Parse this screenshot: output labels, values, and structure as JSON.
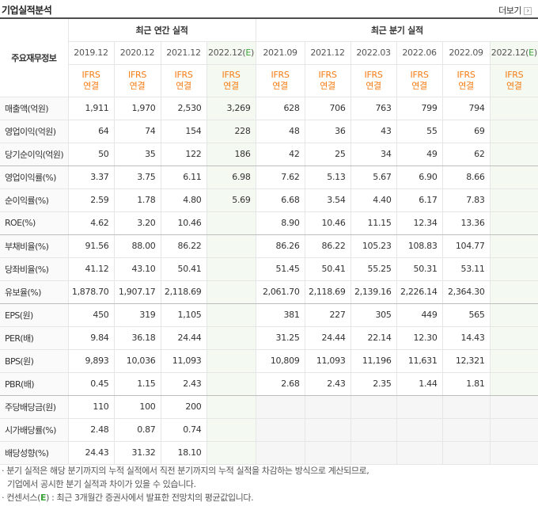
{
  "header": {
    "title": "기업실적분석",
    "more_label": "더보기",
    "more_arrow": "›"
  },
  "table": {
    "corner_label": "주요재무정보",
    "annual_group": "최근 연간 실적",
    "quarter_group": "최근 분기 실적",
    "annual_periods": [
      "2019.12",
      "2020.12",
      "2021.12",
      "2022.12(E)"
    ],
    "quarter_periods": [
      "2021.09",
      "2021.12",
      "2022.03",
      "2022.06",
      "2022.09",
      "2022.12(E)"
    ],
    "standard_line1": "IFRS",
    "standard_line2": "연결",
    "rows": [
      {
        "label": "매출액(억원)",
        "annual": [
          "1,911",
          "1,970",
          "2,530",
          "3,269"
        ],
        "quarter": [
          "628",
          "706",
          "763",
          "799",
          "794",
          ""
        ]
      },
      {
        "label": "영업이익(억원)",
        "annual": [
          "64",
          "74",
          "154",
          "228"
        ],
        "quarter": [
          "48",
          "36",
          "43",
          "55",
          "69",
          ""
        ]
      },
      {
        "label": "당기순이익(억원)",
        "annual": [
          "50",
          "35",
          "122",
          "186"
        ],
        "quarter": [
          "42",
          "25",
          "34",
          "49",
          "62",
          ""
        ]
      },
      {
        "label": "영업이익률(%)",
        "annual": [
          "3.37",
          "3.75",
          "6.11",
          "6.98"
        ],
        "quarter": [
          "7.62",
          "5.13",
          "5.67",
          "6.90",
          "8.66",
          ""
        ]
      },
      {
        "label": "순이익률(%)",
        "annual": [
          "2.59",
          "1.78",
          "4.80",
          "5.69"
        ],
        "quarter": [
          "6.68",
          "3.54",
          "4.40",
          "6.17",
          "7.83",
          ""
        ]
      },
      {
        "label": "ROE(%)",
        "annual": [
          "4.62",
          "3.20",
          "10.46",
          ""
        ],
        "quarter": [
          "8.90",
          "10.46",
          "11.15",
          "12.34",
          "13.36",
          ""
        ]
      },
      {
        "label": "부채비율(%)",
        "annual": [
          "91.56",
          "88.00",
          "86.22",
          ""
        ],
        "quarter": [
          "86.26",
          "86.22",
          "105.23",
          "108.83",
          "104.77",
          ""
        ]
      },
      {
        "label": "당좌비율(%)",
        "annual": [
          "41.12",
          "43.10",
          "50.41",
          ""
        ],
        "quarter": [
          "51.45",
          "50.41",
          "55.25",
          "50.31",
          "53.11",
          ""
        ]
      },
      {
        "label": "유보율(%)",
        "annual": [
          "1,878.70",
          "1,907.17",
          "2,118.69",
          ""
        ],
        "quarter": [
          "2,061.70",
          "2,118.69",
          "2,139.16",
          "2,226.14",
          "2,364.30",
          ""
        ]
      },
      {
        "label": "EPS(원)",
        "annual": [
          "450",
          "319",
          "1,105",
          ""
        ],
        "quarter": [
          "381",
          "227",
          "305",
          "449",
          "565",
          ""
        ]
      },
      {
        "label": "PER(배)",
        "annual": [
          "9.84",
          "36.18",
          "24.44",
          ""
        ],
        "quarter": [
          "31.25",
          "24.44",
          "22.14",
          "12.30",
          "14.43",
          ""
        ]
      },
      {
        "label": "BPS(원)",
        "annual": [
          "9,893",
          "10,036",
          "11,093",
          ""
        ],
        "quarter": [
          "10,809",
          "11,093",
          "11,196",
          "11,631",
          "12,321",
          ""
        ]
      },
      {
        "label": "PBR(배)",
        "annual": [
          "0.45",
          "1.15",
          "2.43",
          ""
        ],
        "quarter": [
          "2.68",
          "2.43",
          "2.35",
          "1.44",
          "1.81",
          ""
        ]
      },
      {
        "label": "주당배당금(원)",
        "annual": [
          "110",
          "100",
          "200",
          ""
        ],
        "quarter": [
          "",
          "",
          "",
          "",
          "",
          ""
        ]
      },
      {
        "label": "시가배당률(%)",
        "annual": [
          "2.48",
          "0.87",
          "0.74",
          ""
        ],
        "quarter": [
          "",
          "",
          "",
          "",
          "",
          ""
        ]
      },
      {
        "label": "배당성향(%)",
        "annual": [
          "24.43",
          "31.32",
          "18.10",
          ""
        ],
        "quarter": [
          "",
          "",
          "",
          "",
          "",
          ""
        ]
      }
    ],
    "group_ends": [
      2,
      5,
      8,
      12
    ]
  },
  "notes": {
    "line1": "· 분기 실적은 해당 분기까지의 누적 실적에서 직전 분기까지의 누적 실적을 차감하는 방식으로 계산되므로,",
    "line2": "기업에서 공시한 분기 실적과 차이가 있을 수 있습니다.",
    "line3_prefix": "· 컨센서스(",
    "line3_e": "E",
    "line3_suffix": ") : 최근 3개월간 증권사에서 발표한 전망치의 평균값입니다."
  }
}
